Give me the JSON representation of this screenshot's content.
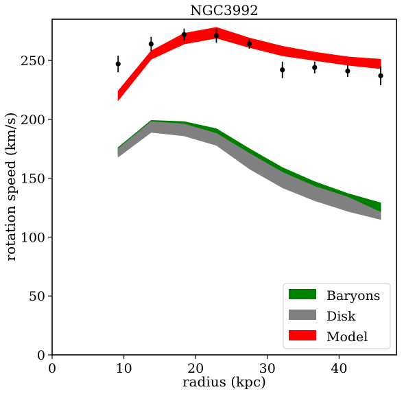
{
  "chart_data": {
    "type": "area",
    "title": "NGC3992",
    "xlabel": "radius (kpc)",
    "ylabel": "rotation speed (km/s)",
    "xlim": [
      0,
      48
    ],
    "ylim": [
      0,
      285
    ],
    "xticks": [
      0,
      10,
      20,
      30,
      40
    ],
    "yticks": [
      0,
      50,
      100,
      150,
      200,
      250
    ],
    "grid": false,
    "legend_position": "lower-right",
    "x": [
      9.2,
      13.8,
      18.4,
      22.9,
      27.5,
      32.1,
      36.6,
      41.2,
      45.8
    ],
    "bands": [
      {
        "name": "Baryons",
        "color": "#008000",
        "lower": [
          170,
          191,
          190,
          184,
          163,
          147,
          136,
          126,
          118
        ],
        "upper": [
          176,
          199,
          198,
          192,
          175,
          159,
          147,
          137,
          129
        ]
      },
      {
        "name": "Disk",
        "color": "#808080",
        "lower": [
          168,
          189,
          186,
          178,
          158,
          142,
          131,
          122,
          115
        ],
        "upper": [
          175,
          198,
          196,
          188,
          171,
          155,
          143,
          134,
          121
        ]
      },
      {
        "name": "Model",
        "color": "#ff0000",
        "lower": [
          216,
          251,
          264,
          269,
          261,
          254,
          250,
          246,
          243
        ],
        "upper": [
          224,
          258,
          273,
          278,
          269,
          262,
          257,
          253,
          251
        ]
      }
    ],
    "observations": {
      "x": [
        9.2,
        13.8,
        18.4,
        22.9,
        27.5,
        32.1,
        36.6,
        41.2,
        45.8
      ],
      "y": [
        247,
        264,
        272,
        271,
        264,
        242,
        244,
        241,
        237
      ],
      "err": [
        7,
        6,
        5,
        6,
        4,
        7,
        5,
        5,
        8
      ]
    }
  }
}
